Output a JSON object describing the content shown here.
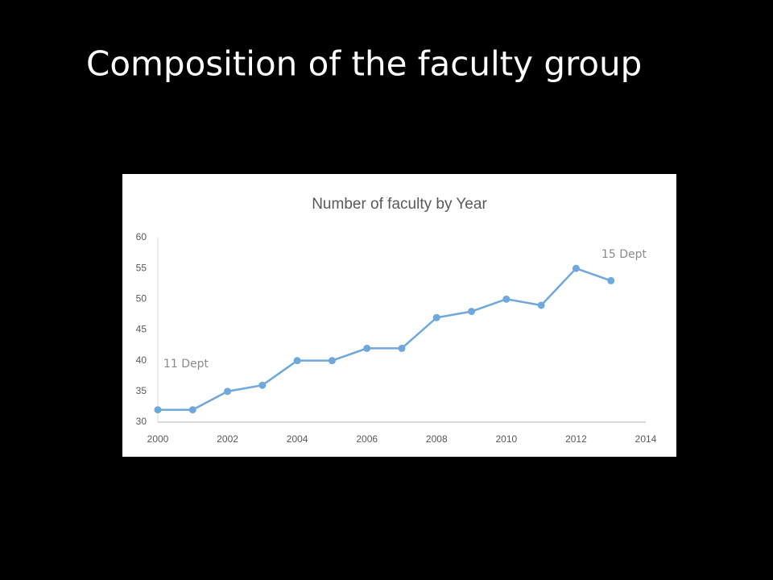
{
  "slide_title": "Composition of the faculty group",
  "chart_data": {
    "type": "line",
    "title": "Number of faculty by Year",
    "x": [
      2000,
      2001,
      2002,
      2003,
      2004,
      2005,
      2006,
      2007,
      2008,
      2009,
      2010,
      2011,
      2012,
      2013
    ],
    "values": [
      32,
      32,
      35,
      36,
      40,
      40,
      42,
      42,
      47,
      48,
      50,
      49,
      55,
      53
    ],
    "color": "#6fa8dc",
    "xlim": [
      2000,
      2014
    ],
    "xticks": [
      2000,
      2002,
      2004,
      2006,
      2008,
      2010,
      2012,
      2014
    ],
    "ylim": [
      30,
      60
    ],
    "yticks": [
      30,
      35,
      40,
      45,
      50,
      55,
      60
    ],
    "annotations": [
      "11 Dept",
      "15 Dept"
    ]
  }
}
